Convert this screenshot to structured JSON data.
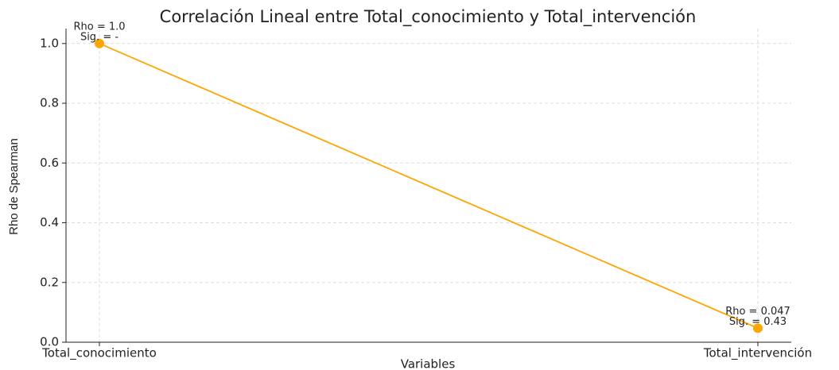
{
  "chart_data": {
    "type": "line",
    "title": "Correlación Lineal entre Total_conocimiento y Total_intervención",
    "x_label": "Variables",
    "y_label": "Rho de Spearman",
    "categories": [
      "Total_conocimiento",
      "Total_intervención"
    ],
    "values": [
      1.0,
      0.047
    ],
    "color": "#ffa500",
    "annotations": [
      [
        "Rho = 1.0",
        "Sig. = -"
      ],
      [
        "Rho = 0.047",
        "Sig. = 0.43"
      ]
    ],
    "ylim": [
      0,
      1.05
    ],
    "yticks": [
      {
        "value": 0,
        "label": "0.0"
      },
      0.2,
      0.4,
      0.6,
      0.8,
      {
        "value": 1,
        "label": "1.0"
      }
    ],
    "grid": true
  }
}
